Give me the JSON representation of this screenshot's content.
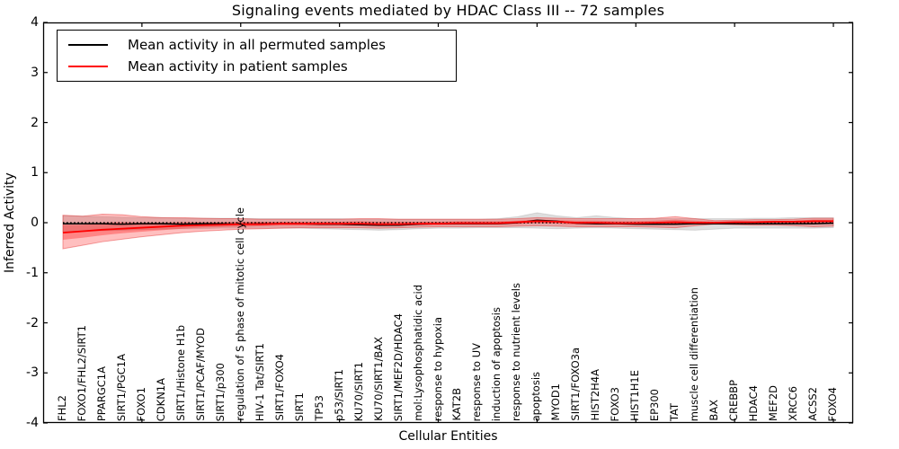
{
  "title": "Signaling events mediated by HDAC Class III -- 72 samples",
  "legend": {
    "items": [
      {
        "label": "Mean activity in all permuted samples",
        "color": "#000000"
      },
      {
        "label": "Mean activity in patient samples",
        "color": "#ff0000"
      }
    ]
  },
  "chart_data": {
    "type": "line",
    "title": "Signaling events mediated by HDAC Class III -- 72 samples",
    "xlabel": "Cellular Entities",
    "ylabel": "Inferred Activity",
    "ylim": [
      -4,
      4
    ],
    "yticks": [
      -4,
      -3,
      -2,
      -1,
      0,
      1,
      2,
      3,
      4
    ],
    "xticks": [
      5,
      10,
      15,
      20,
      25,
      30,
      35,
      40
    ],
    "grid": false,
    "legend_position": "upper left",
    "zero_line": {
      "style": "dotted",
      "y": 0
    },
    "categories": [
      "FHL2",
      "FOXO1/FHL2/SIRT1",
      "PPARGC1A",
      "SIRT1/PGC1A",
      "FOXO1",
      "CDKN1A",
      "SIRT1/Histone H1b",
      "SIRT1/PCAF/MYOD",
      "SIRT1/p300",
      "regulation of S phase of mitotic cell cycle",
      "HIV-1 Tat/SIRT1",
      "SIRT1/FOXO4",
      "SIRT1",
      "TP53",
      "p53/SIRT1",
      "KU70/SIRT1",
      "KU70/SIRT1/BAX",
      "SIRT1/MEF2D/HDAC4",
      "mol:Lysophosphatidic acid",
      "response to hypoxia",
      "KAT2B",
      "response to UV",
      "induction of apoptosis",
      "response to nutrient levels",
      "apoptosis",
      "MYOD1",
      "SIRT1/FOXO3a",
      "HIST2H4A",
      "FOXO3",
      "HIST1H1E",
      "EP300",
      "TAT",
      "muscle cell differentiation",
      "BAX",
      "CREBBP",
      "HDAC4",
      "MEF2D",
      "XRCC6",
      "ACSS2",
      "FOXO4"
    ],
    "series": [
      {
        "name": "Mean activity in all permuted samples",
        "color": "#000000",
        "values": [
          -0.02,
          -0.02,
          -0.02,
          -0.03,
          -0.02,
          -0.02,
          -0.03,
          -0.02,
          -0.02,
          -0.03,
          -0.02,
          -0.02,
          -0.02,
          -0.03,
          -0.03,
          -0.04,
          -0.05,
          -0.05,
          -0.03,
          -0.02,
          -0.02,
          -0.02,
          -0.02,
          0.0,
          0.05,
          0.03,
          -0.01,
          -0.02,
          -0.02,
          -0.03,
          -0.03,
          -0.03,
          -0.02,
          -0.02,
          -0.02,
          -0.02,
          -0.02,
          -0.02,
          -0.02,
          -0.01
        ]
      },
      {
        "name": "Mean activity in patient samples",
        "color": "#ff0000",
        "values": [
          -0.2,
          -0.17,
          -0.14,
          -0.12,
          -0.1,
          -0.08,
          -0.06,
          -0.05,
          -0.04,
          -0.03,
          -0.03,
          -0.02,
          -0.02,
          -0.02,
          -0.02,
          -0.02,
          -0.03,
          -0.03,
          -0.02,
          -0.02,
          -0.01,
          -0.01,
          -0.01,
          0.01,
          0.03,
          0.02,
          0.0,
          0.0,
          -0.01,
          -0.01,
          0.0,
          0.01,
          0.0,
          0.0,
          0.01,
          0.01,
          0.02,
          0.02,
          0.03,
          0.03
        ]
      }
    ],
    "bands": [
      {
        "name": "permuted-std-band",
        "color": "rgba(0,0,0,0.13)",
        "edge": "rgba(0,0,0,0.10)",
        "hi": [
          0.14,
          0.13,
          0.12,
          0.11,
          0.1,
          0.1,
          0.09,
          0.09,
          0.09,
          0.09,
          0.08,
          0.08,
          0.08,
          0.08,
          0.08,
          0.07,
          0.07,
          0.07,
          0.07,
          0.07,
          0.07,
          0.07,
          0.08,
          0.12,
          0.2,
          0.14,
          0.1,
          0.14,
          0.1,
          0.08,
          0.08,
          0.08,
          0.08,
          0.08,
          0.08,
          0.09,
          0.09,
          0.1,
          0.1,
          0.1
        ],
        "lo": [
          -0.18,
          -0.17,
          -0.16,
          -0.15,
          -0.14,
          -0.13,
          -0.12,
          -0.12,
          -0.11,
          -0.11,
          -0.11,
          -0.11,
          -0.11,
          -0.12,
          -0.13,
          -0.14,
          -0.15,
          -0.14,
          -0.12,
          -0.11,
          -0.11,
          -0.1,
          -0.1,
          -0.1,
          -0.11,
          -0.12,
          -0.11,
          -0.1,
          -0.11,
          -0.12,
          -0.13,
          -0.14,
          -0.15,
          -0.13,
          -0.11,
          -0.11,
          -0.11,
          -0.11,
          -0.11,
          -0.1
        ]
      },
      {
        "name": "patient-std-band",
        "color": "rgba(255,0,0,0.25)",
        "edge": "rgba(220,0,0,0.35)",
        "hi": [
          0.15,
          0.13,
          0.17,
          0.16,
          0.12,
          0.1,
          0.1,
          0.09,
          0.08,
          0.08,
          0.07,
          0.07,
          0.07,
          0.07,
          0.07,
          0.08,
          0.08,
          0.07,
          0.07,
          0.07,
          0.07,
          0.07,
          0.07,
          0.08,
          0.1,
          0.09,
          0.08,
          0.08,
          0.08,
          0.08,
          0.09,
          0.12,
          0.08,
          0.04,
          0.05,
          0.06,
          0.06,
          0.07,
          0.09,
          0.09
        ],
        "lo": [
          -0.52,
          -0.45,
          -0.38,
          -0.33,
          -0.28,
          -0.24,
          -0.2,
          -0.17,
          -0.15,
          -0.13,
          -0.12,
          -0.11,
          -0.1,
          -0.1,
          -0.1,
          -0.1,
          -0.11,
          -0.1,
          -0.09,
          -0.08,
          -0.08,
          -0.08,
          -0.08,
          -0.07,
          -0.06,
          -0.07,
          -0.08,
          -0.08,
          -0.08,
          -0.08,
          -0.09,
          -0.1,
          -0.06,
          -0.03,
          -0.04,
          -0.05,
          -0.05,
          -0.06,
          -0.08,
          -0.07
        ]
      },
      {
        "name": "patient-stderr-band",
        "color": "rgba(255,0,0,0.30)",
        "edge": "none",
        "hi": [
          -0.04,
          -0.04,
          0.0,
          0.01,
          0.0,
          0.0,
          0.01,
          0.01,
          0.01,
          0.02,
          0.02,
          0.02,
          0.02,
          0.02,
          0.02,
          0.03,
          0.02,
          0.02,
          0.02,
          0.02,
          0.03,
          0.03,
          0.03,
          0.04,
          0.06,
          0.05,
          0.04,
          0.04,
          0.03,
          0.03,
          0.04,
          0.06,
          0.04,
          0.02,
          0.03,
          0.03,
          0.04,
          0.04,
          0.06,
          0.06
        ],
        "lo": [
          -0.34,
          -0.3,
          -0.25,
          -0.21,
          -0.18,
          -0.15,
          -0.12,
          -0.1,
          -0.09,
          -0.08,
          -0.07,
          -0.06,
          -0.06,
          -0.06,
          -0.06,
          -0.06,
          -0.07,
          -0.06,
          -0.05,
          -0.05,
          -0.04,
          -0.04,
          -0.04,
          -0.03,
          -0.01,
          -0.02,
          -0.04,
          -0.04,
          -0.04,
          -0.04,
          -0.04,
          -0.04,
          -0.03,
          -0.01,
          -0.01,
          -0.02,
          -0.01,
          -0.02,
          -0.02,
          -0.02
        ]
      }
    ]
  }
}
